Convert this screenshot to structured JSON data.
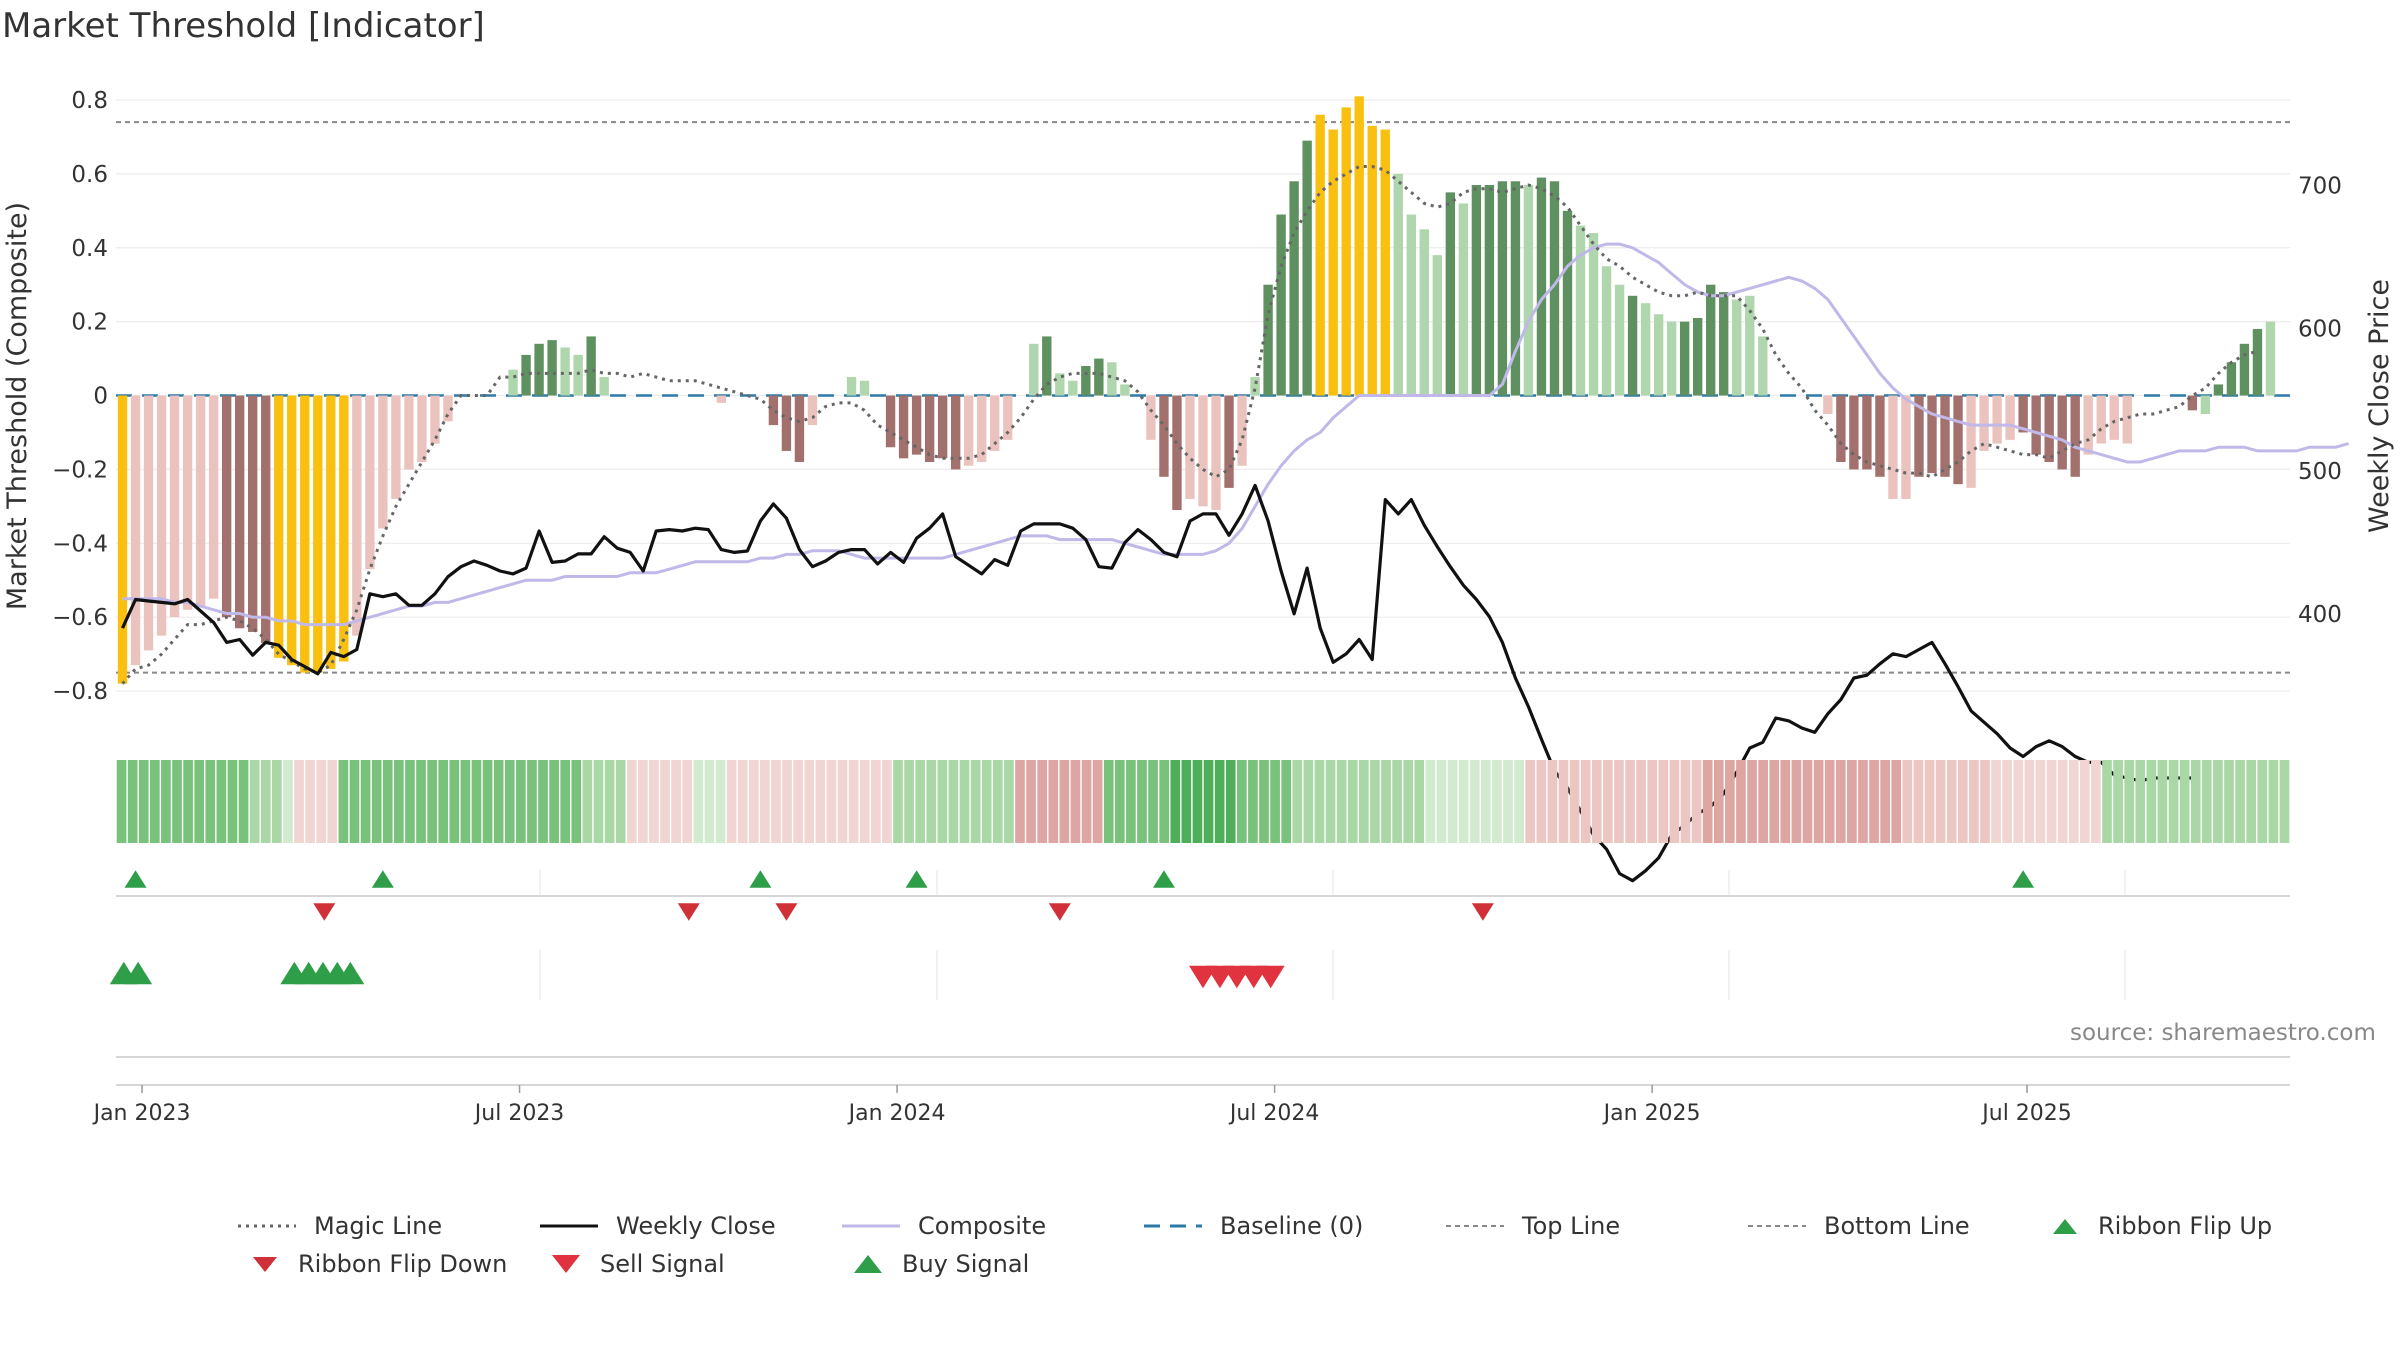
{
  "title": "Market Threshold [Indicator]",
  "source": "source: sharemaestro.com",
  "colors": {
    "strong_green": "#5f9160",
    "light_green": "#afd6ac",
    "strong_red": "#a3716d",
    "light_red": "#ebc3be",
    "gold": "#f9c010",
    "weekly_close": "#111111",
    "composite": "#c0b8e8",
    "magic_line": "#666666",
    "baseline": "#2d7aa8",
    "buy": "#2e9e48",
    "sell": "#e0333f"
  },
  "chart_data": {
    "type": "bar",
    "ylabel_left": "Market Threshold (Composite)",
    "ylabel_right": "Weekly Close Price",
    "ylim_left": [
      -0.9,
      0.8
    ],
    "ylim_right": [
      320,
      760
    ],
    "left_ticks": [
      "0.8",
      "0.6",
      "0.4",
      "0.2",
      "0",
      "−0.2",
      "−0.4",
      "−0.6",
      "−0.8"
    ],
    "left_tick_values": [
      0.8,
      0.6,
      0.4,
      0.2,
      0,
      -0.2,
      -0.4,
      -0.6,
      -0.8
    ],
    "right_ticks": [
      "700",
      "600",
      "500",
      "400"
    ],
    "right_tick_values": [
      700,
      600,
      500,
      400
    ],
    "x_ticks": [
      "Jan 2023",
      "Jul 2023",
      "Jan 2024",
      "Jul 2024",
      "Jan 2025",
      "Jul 2025"
    ],
    "x_tick_weeks": [
      1.5,
      30.5,
      59.5,
      88.5,
      117.5,
      146.3
    ],
    "top_line": 0.74,
    "bottom_line": -0.75,
    "composite_bars": [
      -0.78,
      -0.73,
      -0.69,
      -0.65,
      -0.6,
      -0.58,
      -0.57,
      -0.55,
      -0.6,
      -0.63,
      -0.64,
      -0.67,
      -0.71,
      -0.73,
      -0.75,
      -0.75,
      -0.74,
      -0.72,
      -0.65,
      -0.47,
      -0.36,
      -0.28,
      -0.2,
      -0.18,
      -0.13,
      -0.07,
      0,
      0,
      0,
      0,
      0.07,
      0.11,
      0.14,
      0.15,
      0.13,
      0.11,
      0.16,
      0.05,
      0,
      0,
      0,
      0,
      0,
      0,
      0,
      0,
      -0.02,
      0,
      0,
      0,
      -0.08,
      -0.15,
      -0.18,
      -0.08,
      0,
      0,
      0.05,
      0.04,
      0,
      -0.14,
      -0.17,
      -0.16,
      -0.18,
      -0.17,
      -0.2,
      -0.19,
      -0.18,
      -0.15,
      -0.12,
      0,
      0.14,
      0.16,
      0.06,
      0.04,
      0.08,
      0.1,
      0.09,
      0.03,
      0,
      -0.12,
      -0.22,
      -0.31,
      -0.28,
      -0.3,
      -0.31,
      -0.25,
      -0.19,
      0.05,
      0.3,
      0.49,
      0.58,
      0.69,
      0.76,
      0.72,
      0.78,
      0.81,
      0.73,
      0.72,
      0.6,
      0.49,
      0.45,
      0.38,
      0.55,
      0.52,
      0.57,
      0.57,
      0.58,
      0.58,
      0.57,
      0.59,
      0.58,
      0.5,
      0.46,
      0.44,
      0.35,
      0.3,
      0.27,
      0.25,
      0.22,
      0.2,
      0.2,
      0.21,
      0.3,
      0.28,
      0.26,
      0.27,
      0.16,
      0.1,
      0,
      0,
      0,
      -0.05,
      -0.18,
      -0.2,
      -0.2,
      -0.22,
      -0.28,
      -0.28,
      -0.22,
      -0.21,
      -0.22,
      -0.24,
      -0.25,
      -0.15,
      -0.13,
      -0.12,
      -0.1,
      -0.16,
      -0.18,
      -0.2,
      -0.22,
      -0.16,
      -0.13,
      -0.12,
      -0.13,
      -0.04,
      0,
      0,
      0,
      -0.04,
      -0.05,
      0.03,
      0.09,
      0.14,
      0.18,
      0.2,
      0.19
    ],
    "bar_types": [
      "gold",
      "lr",
      "lr",
      "lr",
      "lr",
      "lr",
      "lr",
      "lr",
      "sr",
      "sr",
      "sr",
      "sr",
      "gold",
      "gold",
      "gold",
      "gold",
      "gold",
      "gold",
      "lr",
      "lr",
      "lr",
      "lr",
      "lr",
      "lr",
      "lr",
      "lr",
      "n",
      "n",
      "n",
      "n",
      "lg",
      "sg",
      "sg",
      "sg",
      "lg",
      "lg",
      "sg",
      "lg",
      "n",
      "n",
      "n",
      "n",
      "n",
      "n",
      "n",
      "n",
      "lr",
      "n",
      "n",
      "n",
      "sr",
      "sr",
      "sr",
      "lr",
      "n",
      "n",
      "lg",
      "lg",
      "n",
      "sr",
      "sr",
      "sr",
      "sr",
      "sr",
      "sr",
      "lr",
      "lr",
      "lr",
      "lr",
      "n",
      "lg",
      "sg",
      "lg",
      "lg",
      "sg",
      "sg",
      "lg",
      "lg",
      "n",
      "lr",
      "sr",
      "sr",
      "lr",
      "lr",
      "lr",
      "sr",
      "lr",
      "lg",
      "sg",
      "sg",
      "sg",
      "sg",
      "gold",
      "gold",
      "gold",
      "gold",
      "gold",
      "gold",
      "lg",
      "lg",
      "lg",
      "lg",
      "sg",
      "lg",
      "sg",
      "sg",
      "sg",
      "sg",
      "lg",
      "sg",
      "sg",
      "sg",
      "lg",
      "lg",
      "lg",
      "lg",
      "sg",
      "lg",
      "lg",
      "lg",
      "sg",
      "sg",
      "sg",
      "sg",
      "lg",
      "lg",
      "lg",
      "n",
      "n",
      "n",
      "lr",
      "lr",
      "sr",
      "sr",
      "sr",
      "sr",
      "lr",
      "lr",
      "sr",
      "sr",
      "sr",
      "sr",
      "lr",
      "lr",
      "lr",
      "lr",
      "sr",
      "sr",
      "sr",
      "sr",
      "sr",
      "lr",
      "lr",
      "lr",
      "lr",
      "n",
      "n",
      "n",
      "sr",
      "sr",
      "lg",
      "sg",
      "sg",
      "sg",
      "sg",
      "lg"
    ],
    "magic_line": [
      -0.78,
      -0.74,
      -0.73,
      -0.7,
      -0.66,
      -0.62,
      -0.62,
      -0.61,
      -0.6,
      -0.61,
      -0.63,
      -0.66,
      -0.7,
      -0.72,
      -0.74,
      -0.75,
      -0.73,
      -0.66,
      -0.58,
      -0.47,
      -0.38,
      -0.3,
      -0.24,
      -0.18,
      -0.12,
      -0.05,
      0,
      0,
      0,
      0.05,
      0.05,
      0.06,
      0.06,
      0.06,
      0.06,
      0.06,
      0.07,
      0.06,
      0.06,
      0.05,
      0.06,
      0.05,
      0.04,
      0.04,
      0.04,
      0.03,
      0.02,
      0.01,
      0,
      -0.01,
      -0.04,
      -0.06,
      -0.07,
      -0.06,
      -0.03,
      -0.02,
      -0.02,
      -0.04,
      -0.08,
      -0.1,
      -0.12,
      -0.14,
      -0.16,
      -0.17,
      -0.17,
      -0.17,
      -0.16,
      -0.13,
      -0.1,
      -0.06,
      -0.01,
      0.03,
      0.05,
      0.06,
      0.06,
      0.06,
      0.05,
      0.04,
      0.01,
      -0.04,
      -0.08,
      -0.13,
      -0.17,
      -0.2,
      -0.22,
      -0.2,
      -0.12,
      0.02,
      0.22,
      0.35,
      0.44,
      0.5,
      0.55,
      0.58,
      0.6,
      0.62,
      0.62,
      0.61,
      0.58,
      0.55,
      0.52,
      0.51,
      0.52,
      0.55,
      0.56,
      0.56,
      0.55,
      0.56,
      0.57,
      0.56,
      0.54,
      0.51,
      0.46,
      0.41,
      0.37,
      0.35,
      0.32,
      0.3,
      0.28,
      0.27,
      0.27,
      0.28,
      0.27,
      0.27,
      0.27,
      0.23,
      0.18,
      0.11,
      0.06,
      0.02,
      -0.04,
      -0.08,
      -0.13,
      -0.16,
      -0.18,
      -0.19,
      -0.2,
      -0.21,
      -0.21,
      -0.22,
      -0.2,
      -0.18,
      -0.15,
      -0.13,
      -0.14,
      -0.15,
      -0.16,
      -0.16,
      -0.17,
      -0.15,
      -0.13,
      -0.12,
      -0.09,
      -0.07,
      -0.06,
      -0.05,
      -0.05,
      -0.04,
      -0.03,
      0,
      0.02,
      0.06,
      0.09,
      0.11,
      0.12
    ],
    "composite_line": [
      -0.55,
      -0.55,
      -0.55,
      -0.55,
      -0.56,
      -0.56,
      -0.57,
      -0.58,
      -0.59,
      -0.59,
      -0.6,
      -0.6,
      -0.61,
      -0.61,
      -0.62,
      -0.62,
      -0.62,
      -0.62,
      -0.61,
      -0.6,
      -0.59,
      -0.58,
      -0.57,
      -0.57,
      -0.56,
      -0.56,
      -0.55,
      -0.54,
      -0.53,
      -0.52,
      -0.51,
      -0.5,
      -0.5,
      -0.5,
      -0.49,
      -0.49,
      -0.49,
      -0.49,
      -0.49,
      -0.48,
      -0.48,
      -0.48,
      -0.47,
      -0.46,
      -0.45,
      -0.45,
      -0.45,
      -0.45,
      -0.45,
      -0.44,
      -0.44,
      -0.43,
      -0.43,
      -0.42,
      -0.42,
      -0.42,
      -0.43,
      -0.44,
      -0.44,
      -0.44,
      -0.44,
      -0.44,
      -0.44,
      -0.44,
      -0.43,
      -0.42,
      -0.41,
      -0.4,
      -0.39,
      -0.38,
      -0.38,
      -0.38,
      -0.39,
      -0.39,
      -0.39,
      -0.39,
      -0.39,
      -0.4,
      -0.41,
      -0.42,
      -0.43,
      -0.43,
      -0.43,
      -0.43,
      -0.42,
      -0.4,
      -0.36,
      -0.3,
      -0.24,
      -0.19,
      -0.15,
      -0.12,
      -0.1,
      -0.06,
      -0.03,
      0,
      0,
      0,
      0,
      0,
      0,
      0,
      0,
      0,
      0,
      0,
      0.03,
      0.12,
      0.2,
      0.26,
      0.3,
      0.35,
      0.38,
      0.4,
      0.41,
      0.41,
      0.4,
      0.38,
      0.36,
      0.33,
      0.3,
      0.28,
      0.27,
      0.27,
      0.28,
      0.29,
      0.3,
      0.31,
      0.32,
      0.31,
      0.29,
      0.26,
      0.21,
      0.16,
      0.11,
      0.06,
      0.02,
      -0.01,
      -0.03,
      -0.05,
      -0.06,
      -0.07,
      -0.08,
      -0.08,
      -0.08,
      -0.08,
      -0.09,
      -0.1,
      -0.11,
      -0.12,
      -0.14,
      -0.15,
      -0.16,
      -0.17,
      -0.18,
      -0.18,
      -0.17,
      -0.16,
      -0.15,
      -0.15,
      -0.15,
      -0.14,
      -0.14,
      -0.14,
      -0.15,
      -0.15,
      -0.15,
      -0.15,
      -0.14,
      -0.14,
      -0.14,
      -0.13
    ],
    "weekly_close": [
      390,
      410,
      409,
      408,
      407,
      410,
      402,
      394,
      380,
      382,
      371,
      380,
      378,
      368,
      363,
      358,
      373,
      370,
      375,
      414,
      412,
      414,
      406,
      406,
      414,
      426,
      433,
      437,
      434,
      430,
      428,
      432,
      458,
      436,
      437,
      442,
      442,
      454,
      446,
      443,
      430,
      458,
      459,
      458,
      460,
      459,
      445,
      443,
      444,
      465,
      477,
      467,
      445,
      433,
      437,
      443,
      445,
      445,
      435,
      443,
      436,
      453,
      460,
      470,
      440,
      434,
      428,
      438,
      434,
      458,
      463,
      463,
      463,
      460,
      452,
      433,
      432,
      450,
      459,
      452,
      443,
      440,
      465,
      470,
      470,
      455,
      470,
      490,
      465,
      430,
      400,
      432,
      390,
      366,
      372,
      382,
      368,
      480,
      470,
      480,
      462,
      447,
      433,
      420,
      410,
      398,
      380,
      355,
      335,
      312,
      290,
      278,
      262,
      245,
      235,
      218,
      213,
      220,
      229,
      245,
      252,
      260,
      265,
      274,
      289,
      306,
      310,
      327,
      325,
      320,
      317,
      330,
      340,
      355,
      357,
      365,
      372,
      370,
      375,
      380,
      365,
      349,
      332,
      324,
      316,
      306,
      300,
      307,
      311,
      307,
      300,
      296,
      296,
      287,
      285,
      283,
      285,
      285,
      285,
      285
    ]
  },
  "ribbon": {
    "cells": [
      "g2",
      "g2",
      "g2",
      "g2",
      "g2",
      "g2",
      "g2",
      "g2",
      "g2",
      "g2",
      "g2",
      "g2",
      "g1",
      "g1",
      "g1",
      "g0",
      "r0",
      "r0",
      "r0",
      "r0",
      "g2",
      "g2",
      "g2",
      "g2",
      "g2",
      "g2",
      "g2",
      "g2",
      "g2",
      "g2",
      "g2",
      "g2",
      "g2",
      "g2",
      "g2",
      "g2",
      "g2",
      "g2",
      "g2",
      "g2",
      "g2",
      "g2",
      "g1",
      "g1",
      "g1",
      "g1",
      "r0",
      "r0",
      "r0",
      "r0",
      "r0",
      "r0",
      "g0",
      "g0",
      "g0",
      "r0",
      "r0",
      "r0",
      "r0",
      "r0",
      "r0",
      "r0",
      "r0",
      "r0",
      "r0",
      "r0",
      "r0",
      "r0",
      "r0",
      "r0",
      "g1",
      "g1",
      "g1",
      "g1",
      "g1",
      "g1",
      "g1",
      "g1",
      "g1",
      "g1",
      "g1",
      "r2",
      "r2",
      "r2",
      "r2",
      "r2",
      "r2",
      "r2",
      "r2",
      "g2",
      "g2",
      "g2",
      "g2",
      "g2",
      "g2",
      "g3",
      "g3",
      "g3",
      "g3",
      "g3",
      "g3",
      "g2",
      "g2",
      "g2",
      "g2",
      "g2",
      "g1",
      "g1",
      "g1",
      "g1",
      "g1",
      "g1",
      "g1",
      "g1",
      "g1",
      "g1",
      "g1",
      "g1",
      "g0",
      "g0",
      "g0",
      "g0",
      "g0",
      "g0",
      "g0",
      "g0",
      "g0",
      "r1",
      "r1",
      "r1",
      "r1",
      "r1",
      "r1",
      "r1",
      "r1",
      "r1",
      "r1",
      "r1",
      "r1",
      "r1",
      "r1",
      "r1",
      "r1",
      "r2",
      "r2",
      "r2",
      "r2",
      "r2",
      "r2",
      "r2",
      "r2",
      "r2",
      "r2",
      "r2",
      "r2",
      "r2",
      "r2",
      "r2",
      "r2",
      "r2",
      "r2",
      "r1",
      "r1",
      "r1",
      "r1",
      "r1",
      "r1",
      "r1",
      "r1",
      "r0",
      "r0",
      "r0",
      "r0",
      "r0",
      "r0",
      "r0",
      "r0",
      "r0",
      "r0",
      "g1",
      "g1",
      "g1",
      "g1",
      "g1",
      "g1",
      "g1",
      "g1",
      "g1",
      "g1",
      "g1",
      "g1",
      "g1",
      "g1",
      "g1",
      "g1",
      "g1"
    ],
    "colors": {
      "g0": "#d2eacf",
      "g1": "#a9d8a6",
      "g2": "#78c27c",
      "g3": "#4fae59",
      "r0": "#f0d5d2",
      "r1": "#ebc6c2",
      "r2": "#dea6a3"
    }
  },
  "ribbon_flip_up_weeks": [
    1,
    20,
    49,
    61,
    80,
    146
  ],
  "ribbon_flip_down_weeks": [
    15.5,
    43.5,
    51,
    72,
    104.5
  ],
  "buy_signal_weeks": [
    0.1,
    1.2,
    13.2,
    14.3,
    15.4,
    16.5,
    17.5
  ],
  "sell_signal_weeks": [
    83,
    84.3,
    85.6,
    86.9,
    88.2
  ],
  "legend": [
    {
      "label": "Magic Line",
      "icon": "dotted-line-icon"
    },
    {
      "label": "Weekly Close",
      "icon": "solid-line-icon"
    },
    {
      "label": "Composite",
      "icon": "lavender-line-icon"
    },
    {
      "label": "Baseline (0)",
      "icon": "dashed-line-icon"
    },
    {
      "label": "Top Line",
      "icon": "fine-dashed-line-icon"
    },
    {
      "label": "Bottom Line",
      "icon": "fine-dashed-line-icon"
    },
    {
      "label": "Ribbon Flip Up",
      "icon": "triangle-up-icon"
    },
    {
      "label": "Ribbon Flip Down",
      "icon": "triangle-down-icon"
    },
    {
      "label": "Sell Signal",
      "icon": "triangle-down-icon"
    },
    {
      "label": "Buy Signal",
      "icon": "triangle-up-icon"
    }
  ]
}
